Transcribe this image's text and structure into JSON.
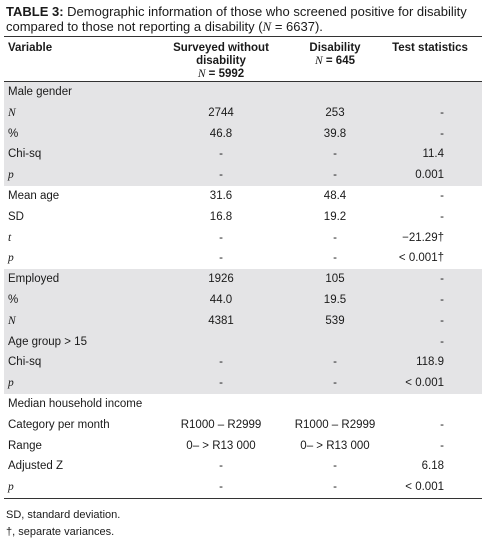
{
  "caption": {
    "label": "TABLE 3:",
    "text1": "Demographic information of those who screened positive for disability compared to those not reporting a disability (",
    "n_symbol": "N",
    "text2": " = 6637)."
  },
  "headers": {
    "variable": "Variable",
    "surveyed": "Surveyed without disability",
    "surveyed_n_symbol": "N",
    "surveyed_n": " = 5992",
    "disability": "Disability",
    "disability_n_symbol": "N",
    "disability_n": " = 645",
    "test": "Test statistics"
  },
  "rows": [
    {
      "label": "Male gender",
      "italic": false,
      "surveyed": "",
      "disability": "",
      "test": "",
      "shaded": true
    },
    {
      "label": "N",
      "italic": true,
      "surveyed": "2744",
      "disability": "253",
      "test": "-",
      "shaded": true
    },
    {
      "label": "%",
      "italic": false,
      "surveyed": "46.8",
      "disability": "39.8",
      "test": "-",
      "shaded": true
    },
    {
      "label": "Chi-sq",
      "italic": false,
      "surveyed": "-",
      "disability": "-",
      "test": "11.4",
      "shaded": true
    },
    {
      "label": "p",
      "italic": true,
      "surveyed": "-",
      "disability": "-",
      "test": "0.001",
      "shaded": true
    },
    {
      "label": "Mean age",
      "italic": false,
      "surveyed": "31.6",
      "disability": "48.4",
      "test": "-",
      "shaded": false
    },
    {
      "label": "SD",
      "italic": false,
      "surveyed": "16.8",
      "disability": "19.2",
      "test": "-",
      "shaded": false
    },
    {
      "label": "t",
      "italic": true,
      "surveyed": "-",
      "disability": "-",
      "test": "−21.29†",
      "shaded": false
    },
    {
      "label": "p",
      "italic": true,
      "surveyed": "-",
      "disability": "-",
      "test": "< 0.001†",
      "shaded": false
    },
    {
      "label": "Employed",
      "italic": false,
      "surveyed": "1926",
      "disability": "105",
      "test": "-",
      "shaded": true
    },
    {
      "label": "%",
      "italic": false,
      "surveyed": "44.0",
      "disability": "19.5",
      "test": "-",
      "shaded": true
    },
    {
      "label": "N",
      "italic": true,
      "surveyed": "4381",
      "disability": "539",
      "test": "-",
      "shaded": true
    },
    {
      "label": "Age group > 15",
      "italic": false,
      "surveyed": "",
      "disability": "",
      "test": "-",
      "shaded": true
    },
    {
      "label": "Chi-sq",
      "italic": false,
      "surveyed": "-",
      "disability": "-",
      "test": "118.9",
      "shaded": true
    },
    {
      "label": "p",
      "italic": true,
      "surveyed": "-",
      "disability": "-",
      "test": "< 0.001",
      "shaded": true
    },
    {
      "label": "Median household income",
      "italic": false,
      "surveyed": "",
      "disability": "",
      "test": "",
      "shaded": false
    },
    {
      "label": "Category per month",
      "italic": false,
      "surveyed": "R1000 – R2999",
      "disability": "R1000 – R2999",
      "test": "-",
      "shaded": false
    },
    {
      "label": "Range",
      "italic": false,
      "surveyed": "0– > R13 000",
      "disability": "0– > R13 000",
      "test": "-",
      "shaded": false
    },
    {
      "label": "Adjusted Z",
      "italic": false,
      "surveyed": "-",
      "disability": "-",
      "test": "6.18",
      "shaded": false
    },
    {
      "label": "p",
      "italic": true,
      "surveyed": "-",
      "disability": "-",
      "test": "< 0.001",
      "shaded": false
    }
  ],
  "notes": [
    "SD, standard deviation.",
    "†, separate variances."
  ]
}
